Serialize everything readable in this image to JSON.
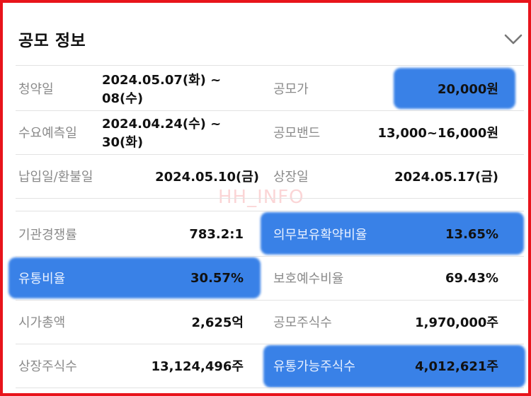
{
  "section": {
    "title": "공모 정보",
    "collapse_icon": "chevron-down-icon"
  },
  "watermark": "HH_INFO",
  "highlight_color": "#2f7be6",
  "rows": [
    {
      "left": {
        "label": "청약일",
        "value": "2024.05.07(화) ~ 08(수)"
      },
      "right": {
        "label": "공모가",
        "value": "20,000원"
      }
    },
    {
      "left": {
        "label": "수요예측일",
        "value": "2024.04.24(수) ~ 30(화)"
      },
      "right": {
        "label": "공모밴드",
        "value": "13,000~16,000원"
      }
    },
    {
      "left": {
        "label": "납입일/환불일",
        "value": "2024.05.10(금)"
      },
      "right": {
        "label": "상장일",
        "value": "2024.05.17(금)"
      }
    },
    {
      "left": {
        "label": "기관경쟁률",
        "value": "783.2:1"
      },
      "right": {
        "label": "의무보유확약비율",
        "value": "13.65%"
      }
    },
    {
      "left": {
        "label": "유통비율",
        "value": "30.57%"
      },
      "right": {
        "label": "보호예수비율",
        "value": "69.43%"
      }
    },
    {
      "left": {
        "label": "시가총액",
        "value": "2,625억"
      },
      "right": {
        "label": "공모주식수",
        "value": "1,970,000주"
      }
    },
    {
      "left": {
        "label": "상장주식수",
        "value": "13,124,496주"
      },
      "right": {
        "label": "유통가능주식수",
        "value": "4,012,621주"
      }
    }
  ]
}
